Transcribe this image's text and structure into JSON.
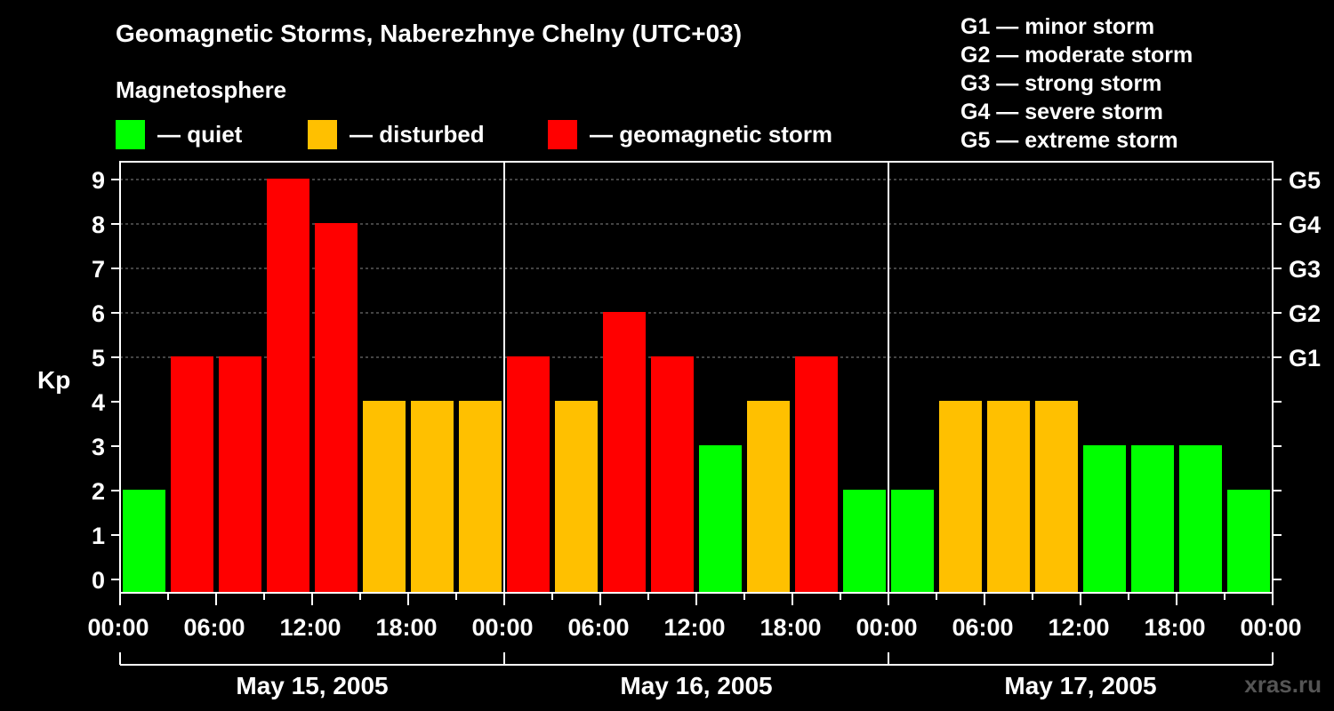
{
  "header": {
    "title": "Geomagnetic Storms, Naberezhnye Chelny (UTC+03)",
    "magnetosphere_heading": "Magnetosphere"
  },
  "legend": [
    {
      "label": "— quiet",
      "color": "#00ff00"
    },
    {
      "label": "— disturbed",
      "color": "#ffc000"
    },
    {
      "label": "— geomagnetic storm",
      "color": "#ff0000"
    }
  ],
  "storm_scale": [
    "G1 — minor storm",
    "G2 — moderate storm",
    "G3 — strong storm",
    "G4 — severe storm",
    "G5 — extreme storm"
  ],
  "watermark": "xras.ru",
  "chart_data": {
    "type": "bar",
    "ylabel": "Kp",
    "ylim": [
      0,
      9
    ],
    "y_ticks": [
      "0",
      "1",
      "2",
      "3",
      "4",
      "5",
      "6",
      "7",
      "8",
      "9"
    ],
    "right_ticks": [
      {
        "kp": 5,
        "label": "G1"
      },
      {
        "kp": 6,
        "label": "G2"
      },
      {
        "kp": 7,
        "label": "G3"
      },
      {
        "kp": 8,
        "label": "G4"
      },
      {
        "kp": 9,
        "label": "G5"
      }
    ],
    "x_tick_labels": [
      "00:00",
      "06:00",
      "12:00",
      "18:00",
      "00:00",
      "06:00",
      "12:00",
      "18:00",
      "00:00",
      "06:00",
      "12:00",
      "18:00",
      "00:00"
    ],
    "days": [
      "May 15, 2005",
      "May 16, 2005",
      "May 17, 2005"
    ],
    "grid": "dashed horizontal at Kp 5–9",
    "values": [
      2,
      5,
      5,
      9,
      8,
      4,
      4,
      4,
      5,
      4,
      6,
      5,
      3,
      4,
      5,
      2,
      2,
      4,
      4,
      4,
      3,
      3,
      3,
      2
    ],
    "colors": {
      "quiet": "#00ff00",
      "disturbed": "#ffc000",
      "storm": "#ff0000"
    }
  }
}
